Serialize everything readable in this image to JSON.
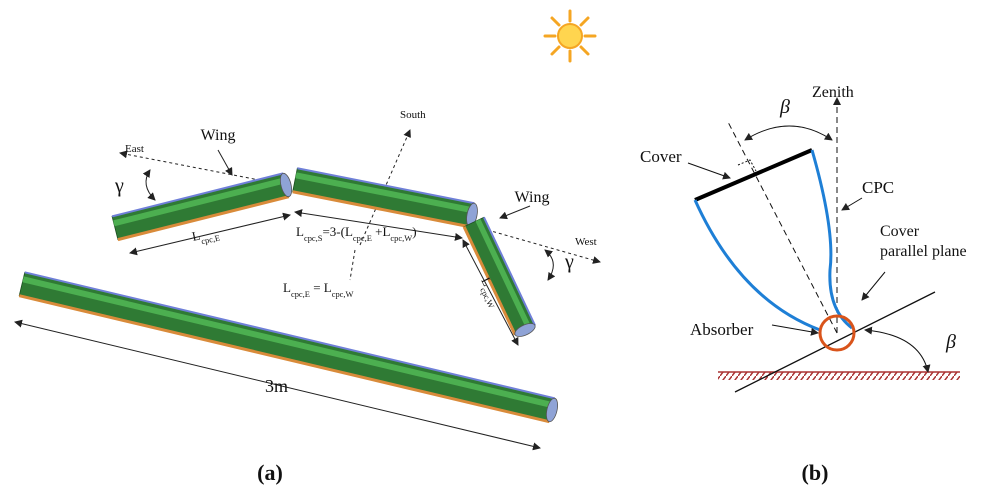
{
  "panel_a": {
    "caption": "(a)",
    "directions": {
      "east": "East",
      "south": "South",
      "west": "West"
    },
    "wing_labels": [
      "Wing",
      "Wing"
    ],
    "angle_labels": [
      "γ",
      "γ"
    ],
    "total_length": "3m",
    "length_east": [
      "L",
      "cpc,E"
    ],
    "length_south": [
      "L",
      "cpc,S",
      "=3-(L",
      "cpc,E",
      " +L",
      "cpc,W",
      ")"
    ],
    "length_equality": [
      "L",
      "cpc,E",
      " = L",
      "cpc,W"
    ],
    "length_west": [
      "L",
      "cpc,W"
    ]
  },
  "panel_b": {
    "caption": "(b)",
    "zenith": "Zenith",
    "cover": "Cover",
    "cpc": "CPC",
    "cover_plane": [
      "Cover",
      "parallel plane"
    ],
    "absorber": "Absorber",
    "angle_labels": [
      "β",
      "β"
    ]
  }
}
